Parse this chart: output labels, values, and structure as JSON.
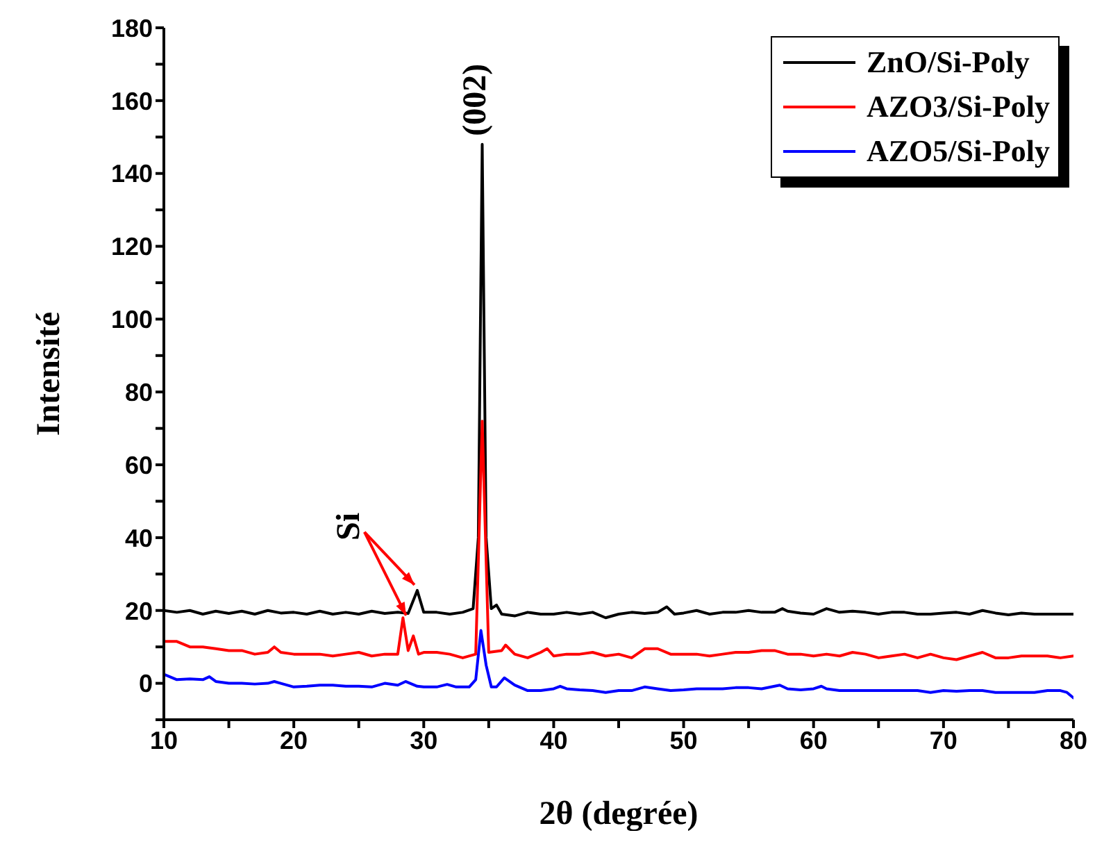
{
  "chart_data": {
    "type": "line",
    "xlabel": "2θ (degrée)",
    "ylabel": "Intensité",
    "xlim": [
      10,
      80
    ],
    "ylim": [
      -10,
      180
    ],
    "xticks": [
      10,
      {
        "value": 15,
        "label": null
      },
      20,
      {
        "value": 25,
        "label": null
      },
      30,
      {
        "value": 35,
        "label": null
      },
      40,
      {
        "value": 45,
        "label": null
      },
      50,
      {
        "value": 55,
        "label": null
      },
      60,
      {
        "value": 65,
        "label": null
      },
      70,
      {
        "value": 75,
        "label": null
      },
      80
    ],
    "yticks": [
      {
        "value": -10,
        "label": null
      },
      0,
      {
        "value": 10,
        "label": null
      },
      20,
      {
        "value": 30,
        "label": null
      },
      40,
      {
        "value": 50,
        "label": null
      },
      60,
      {
        "value": 70,
        "label": null
      },
      80,
      {
        "value": 90,
        "label": null
      },
      100,
      {
        "value": 110,
        "label": null
      },
      120,
      {
        "value": 130,
        "label": null
      },
      140,
      {
        "value": 150,
        "label": null
      },
      160,
      {
        "value": 170,
        "label": null
      },
      180
    ],
    "grid": false,
    "legend": "top right",
    "marker": "none",
    "line_style": "solid",
    "annotations": [
      {
        "text": "(002)",
        "x": 34.5,
        "y": 148
      },
      {
        "text": "Si",
        "x": 29.5,
        "y": 25.5
      }
    ],
    "series": [
      {
        "name": "ZnO/Si-Poly",
        "color": "#000000",
        "x": [
          10,
          11,
          12,
          13,
          14,
          15,
          16,
          17,
          18,
          19,
          20,
          21,
          22,
          23,
          24,
          25,
          26,
          27,
          28,
          28.8,
          29.5,
          30,
          31,
          32,
          33,
          33.8,
          34.2,
          34.5,
          34.8,
          35.2,
          35.6,
          36,
          37,
          38,
          39,
          40,
          41,
          42,
          43,
          44,
          45,
          46,
          47,
          48,
          48.7,
          49.3,
          50,
          51,
          52,
          53,
          54,
          55,
          56,
          57,
          57.6,
          58,
          59,
          60,
          61,
          62,
          63,
          64,
          65,
          66,
          67,
          68,
          69,
          70,
          71,
          72,
          73,
          74,
          75,
          76,
          77,
          78,
          79,
          80
        ],
        "values": [
          20,
          19.5,
          20,
          19,
          19.8,
          19.2,
          19.8,
          19,
          20,
          19.3,
          19.5,
          19,
          19.8,
          19,
          19.5,
          19,
          19.8,
          19.2,
          19.5,
          19.2,
          25.5,
          19.5,
          19.5,
          19,
          19.5,
          20.5,
          40,
          148,
          40,
          20.5,
          21.5,
          19,
          18.5,
          19.5,
          19,
          19,
          19.5,
          19,
          19.5,
          18,
          19,
          19.5,
          19.2,
          19.5,
          21,
          19,
          19.3,
          20,
          19,
          19.5,
          19.5,
          20,
          19.5,
          19.5,
          20.5,
          19.8,
          19.3,
          19,
          20.5,
          19.5,
          19.8,
          19.5,
          19,
          19.5,
          19.5,
          19,
          19,
          19.3,
          19.5,
          19,
          20,
          19.3,
          18.8,
          19.3,
          19,
          19,
          19,
          19
        ]
      },
      {
        "name": "AZO3/Si-Poly",
        "color": "#ff0000",
        "x": [
          10,
          11,
          12,
          13,
          14,
          15,
          16,
          17,
          18,
          18.5,
          19,
          20,
          21,
          22,
          23,
          24,
          25,
          26,
          27,
          28,
          28.4,
          28.8,
          29.2,
          29.6,
          30,
          31,
          32,
          33,
          34,
          34.5,
          35,
          36,
          36.3,
          37,
          38,
          39,
          39.5,
          40,
          41,
          42,
          43,
          44,
          45,
          46,
          47,
          48,
          49,
          50,
          51,
          52,
          53,
          54,
          55,
          56,
          57,
          58,
          59,
          60,
          61,
          62,
          63,
          64,
          65,
          66,
          67,
          68,
          69,
          70,
          71,
          72,
          73,
          74,
          75,
          76,
          77,
          78,
          79,
          80
        ],
        "values": [
          11.5,
          11.5,
          10,
          10,
          9.5,
          9,
          9,
          8,
          8.5,
          10,
          8.5,
          8,
          8,
          8,
          7.5,
          8,
          8.5,
          7.5,
          8,
          8,
          18,
          9,
          13,
          8,
          8.5,
          8.5,
          8,
          7,
          8,
          72,
          8.5,
          9,
          10.5,
          8,
          7,
          8.5,
          9.5,
          7.5,
          8,
          8,
          8.5,
          7.5,
          8,
          7,
          9.5,
          9.5,
          8,
          8,
          8,
          7.5,
          8,
          8.5,
          8.5,
          9,
          9,
          8,
          8,
          7.5,
          8,
          7.5,
          8.5,
          8,
          7,
          7.5,
          8,
          7,
          8,
          7,
          6.5,
          7.5,
          8.5,
          7,
          7,
          7.5,
          7.5,
          7.5,
          7,
          7.5
        ]
      },
      {
        "name": "AZO5/Si-Poly",
        "color": "#0000ff",
        "x": [
          10,
          11,
          12,
          13,
          13.5,
          14,
          15,
          16,
          17,
          18,
          18.5,
          19,
          20,
          21,
          22,
          23,
          24,
          25,
          26,
          27,
          28,
          28.6,
          29.5,
          30,
          31,
          31.8,
          32.5,
          33.5,
          34,
          34.4,
          34.8,
          35.2,
          35.6,
          36.2,
          37,
          38,
          39,
          40,
          40.5,
          41,
          42,
          43,
          44,
          45,
          46,
          47,
          48,
          49,
          50,
          51,
          52,
          53,
          54,
          55,
          56,
          57.4,
          58,
          59,
          60,
          60.6,
          61,
          62,
          63,
          64,
          65,
          66,
          67,
          68,
          69,
          70,
          71,
          72,
          73,
          74,
          75,
          76,
          77,
          78,
          79,
          79.5,
          80
        ],
        "values": [
          2.5,
          1,
          1.2,
          1,
          1.8,
          0.5,
          0,
          0,
          -0.2,
          0,
          0.5,
          0,
          -1,
          -0.8,
          -0.5,
          -0.5,
          -0.8,
          -0.8,
          -1,
          0,
          -0.5,
          0.5,
          -0.8,
          -1,
          -1,
          -0.3,
          -1,
          -1,
          1,
          14.5,
          5,
          -1,
          -1,
          1.5,
          -0.5,
          -2,
          -2,
          -1.5,
          -0.8,
          -1.5,
          -1.8,
          -2,
          -2.5,
          -2,
          -2,
          -1,
          -1.5,
          -2,
          -1.8,
          -1.5,
          -1.5,
          -1.5,
          -1.2,
          -1.2,
          -1.5,
          -0.5,
          -1.5,
          -1.8,
          -1.5,
          -0.8,
          -1.5,
          -2,
          -2,
          -2,
          -2,
          -2,
          -2,
          -2,
          -2.5,
          -2,
          -2.2,
          -2,
          -2,
          -2.5,
          -2.5,
          -2.5,
          -2.5,
          -2,
          -2,
          -2.5,
          -4
        ]
      }
    ]
  }
}
